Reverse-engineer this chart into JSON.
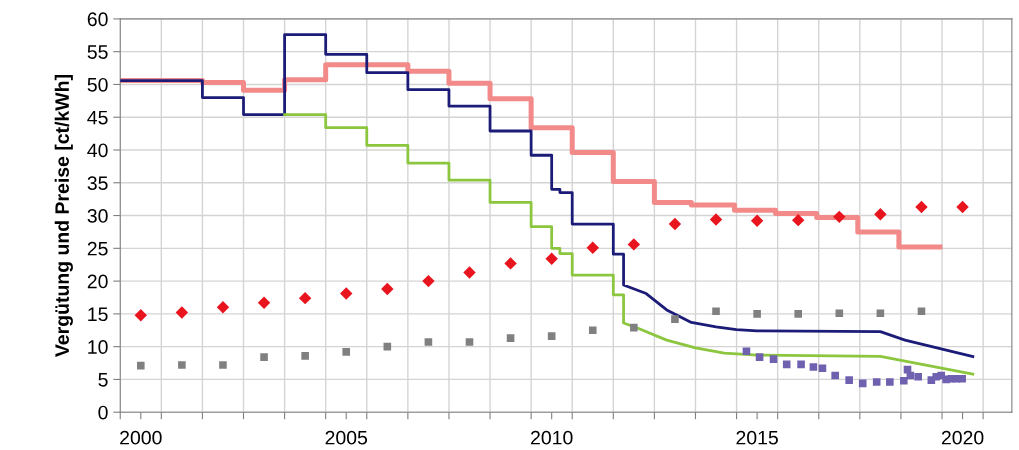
{
  "chart_data": {
    "type": "line",
    "ylabel": "Vergütung und Preise [ct/kWh]",
    "xlim": [
      2000,
      2021.7
    ],
    "ylim": [
      0,
      60
    ],
    "xticks": [
      {
        "value": 2000,
        "label": null
      },
      {
        "value": 2000.5,
        "label": "2000"
      },
      {
        "value": 2001,
        "label": null
      },
      {
        "value": 2002,
        "label": null
      },
      {
        "value": 2003,
        "label": null
      },
      {
        "value": 2004,
        "label": null
      },
      {
        "value": 2005,
        "label": null
      },
      {
        "value": 2005.5,
        "label": "2005"
      },
      {
        "value": 2006,
        "label": null
      },
      {
        "value": 2007,
        "label": null
      },
      {
        "value": 2008,
        "label": null
      },
      {
        "value": 2009,
        "label": null
      },
      {
        "value": 2010,
        "label": null
      },
      {
        "value": 2010.5,
        "label": "2010"
      },
      {
        "value": 2011,
        "label": null
      },
      {
        "value": 2012,
        "label": null
      },
      {
        "value": 2013,
        "label": null
      },
      {
        "value": 2014,
        "label": null
      },
      {
        "value": 2015,
        "label": null
      },
      {
        "value": 2015.5,
        "label": "2015"
      },
      {
        "value": 2016,
        "label": null
      },
      {
        "value": 2017,
        "label": null
      },
      {
        "value": 2018,
        "label": null
      },
      {
        "value": 2019,
        "label": null
      },
      {
        "value": 2020,
        "label": null
      },
      {
        "value": 2020.5,
        "label": "2020"
      },
      {
        "value": 2021,
        "label": null
      }
    ],
    "yticks": [
      0,
      5,
      10,
      15,
      20,
      25,
      30,
      35,
      40,
      45,
      50,
      55,
      60
    ],
    "grid": true,
    "series": [
      {
        "type": "step",
        "color": "#f28a8a",
        "x": [
          2000,
          2002,
          2003,
          2004,
          2005,
          2007,
          2008,
          2009,
          2010,
          2011,
          2012,
          2013,
          2013.9,
          2014.95,
          2015.95,
          2016.95,
          2017.95,
          2018.95,
          2019.95
        ],
        "values": [
          50.6,
          50.3,
          49.1,
          50.7,
          53.0,
          52.0,
          50.2,
          47.8,
          43.4,
          39.6,
          35.2,
          32.0,
          31.6,
          30.8,
          30.3,
          29.7,
          27.5,
          25.2,
          25.2
        ]
      },
      {
        "color": "#1c1c78",
        "x": [
          2000,
          2002,
          2002,
          2003,
          2003,
          2004,
          2004,
          2005,
          2005,
          2006,
          2006,
          2007,
          2007,
          2008,
          2008,
          2009,
          2009,
          2010,
          2010,
          2010.5,
          2010.5,
          2010.7,
          2010.7,
          2011,
          2011,
          2012,
          2012,
          2012.25,
          2012.25,
          2012.8,
          2013.3,
          2013.9,
          2014.5,
          2015,
          2015.5,
          2018.5,
          2019.1,
          2020.75
        ],
        "values": [
          50.6,
          50.6,
          48.0,
          48.0,
          45.4,
          45.4,
          57.6,
          57.6,
          54.6,
          54.6,
          51.8,
          51.8,
          49.2,
          49.2,
          46.7,
          46.7,
          42.9,
          42.9,
          39.2,
          39.2,
          34.0,
          34.0,
          33.5,
          33.5,
          28.7,
          28.7,
          24.1,
          24.1,
          19.4,
          18.1,
          15.6,
          13.7,
          13.0,
          12.6,
          12.4,
          12.3,
          11.0,
          8.5
        ]
      },
      {
        "color": "#8cc63f",
        "x": [
          2004,
          2005,
          2005,
          2006,
          2006,
          2007,
          2007,
          2008,
          2008,
          2009,
          2009,
          2010,
          2010,
          2010.5,
          2010.5,
          2010.7,
          2010.7,
          2011,
          2011,
          2012,
          2012,
          2012.25,
          2012.25,
          2012.6,
          2013.3,
          2014,
          2014.7,
          2015.5,
          2018.5,
          2019.1,
          2020.75
        ],
        "values": [
          45.4,
          45.4,
          43.4,
          43.4,
          40.7,
          40.7,
          38.0,
          38.0,
          35.4,
          35.4,
          32.0,
          32.0,
          28.3,
          28.3,
          25.0,
          25.0,
          24.2,
          24.2,
          20.9,
          20.9,
          17.9,
          17.9,
          13.6,
          12.8,
          11.0,
          9.8,
          9.0,
          8.7,
          8.5,
          7.8,
          5.8
        ]
      },
      {
        "type": "scatter",
        "marker": "diamond",
        "color": "#e8141e",
        "x": [
          2000.5,
          2001.5,
          2002.5,
          2003.5,
          2004.5,
          2005.5,
          2006.5,
          2007.5,
          2008.5,
          2009.5,
          2010.5,
          2011.5,
          2012.5,
          2013.5,
          2014.5,
          2015.5,
          2016.5,
          2017.5,
          2018.5,
          2019.5,
          2020.5
        ],
        "values": [
          14.8,
          15.2,
          16.0,
          16.7,
          17.4,
          18.1,
          18.8,
          20.0,
          21.3,
          22.7,
          23.4,
          25.1,
          25.6,
          28.7,
          29.4,
          29.2,
          29.3,
          29.8,
          30.2,
          31.3,
          31.3
        ]
      },
      {
        "type": "scatter",
        "marker": "square",
        "color": "#808080",
        "x": [
          2000.5,
          2001.5,
          2002.5,
          2003.5,
          2004.5,
          2005.5,
          2006.5,
          2007.5,
          2008.5,
          2009.5,
          2010.5,
          2011.5,
          2012.5,
          2013.5,
          2014.5,
          2015.5,
          2016.5,
          2017.5,
          2018.5,
          2019.5
        ],
        "values": [
          7.1,
          7.2,
          7.2,
          8.4,
          8.6,
          9.2,
          10.0,
          10.7,
          10.7,
          11.3,
          11.6,
          12.5,
          12.9,
          14.2,
          15.4,
          15.0,
          15.0,
          15.1,
          15.1,
          15.4
        ]
      },
      {
        "type": "scatter",
        "marker": "square",
        "color": "#7060b0",
        "x": [
          2015.24,
          2015.56,
          2015.9,
          2016.22,
          2016.57,
          2016.87,
          2017.09,
          2017.4,
          2017.74,
          2018.07,
          2018.41,
          2018.73,
          2019.07,
          2019.16,
          2019.23,
          2019.42,
          2019.74,
          2019.86,
          2019.98,
          2020.1,
          2020.23,
          2020.35,
          2020.49
        ],
        "values": [
          9.3,
          8.4,
          8.1,
          7.3,
          7.3,
          6.9,
          6.7,
          5.6,
          4.9,
          4.4,
          4.6,
          4.6,
          4.8,
          6.5,
          5.6,
          5.4,
          4.9,
          5.4,
          5.6,
          5.0,
          5.1,
          5.1,
          5.1
        ]
      }
    ]
  }
}
